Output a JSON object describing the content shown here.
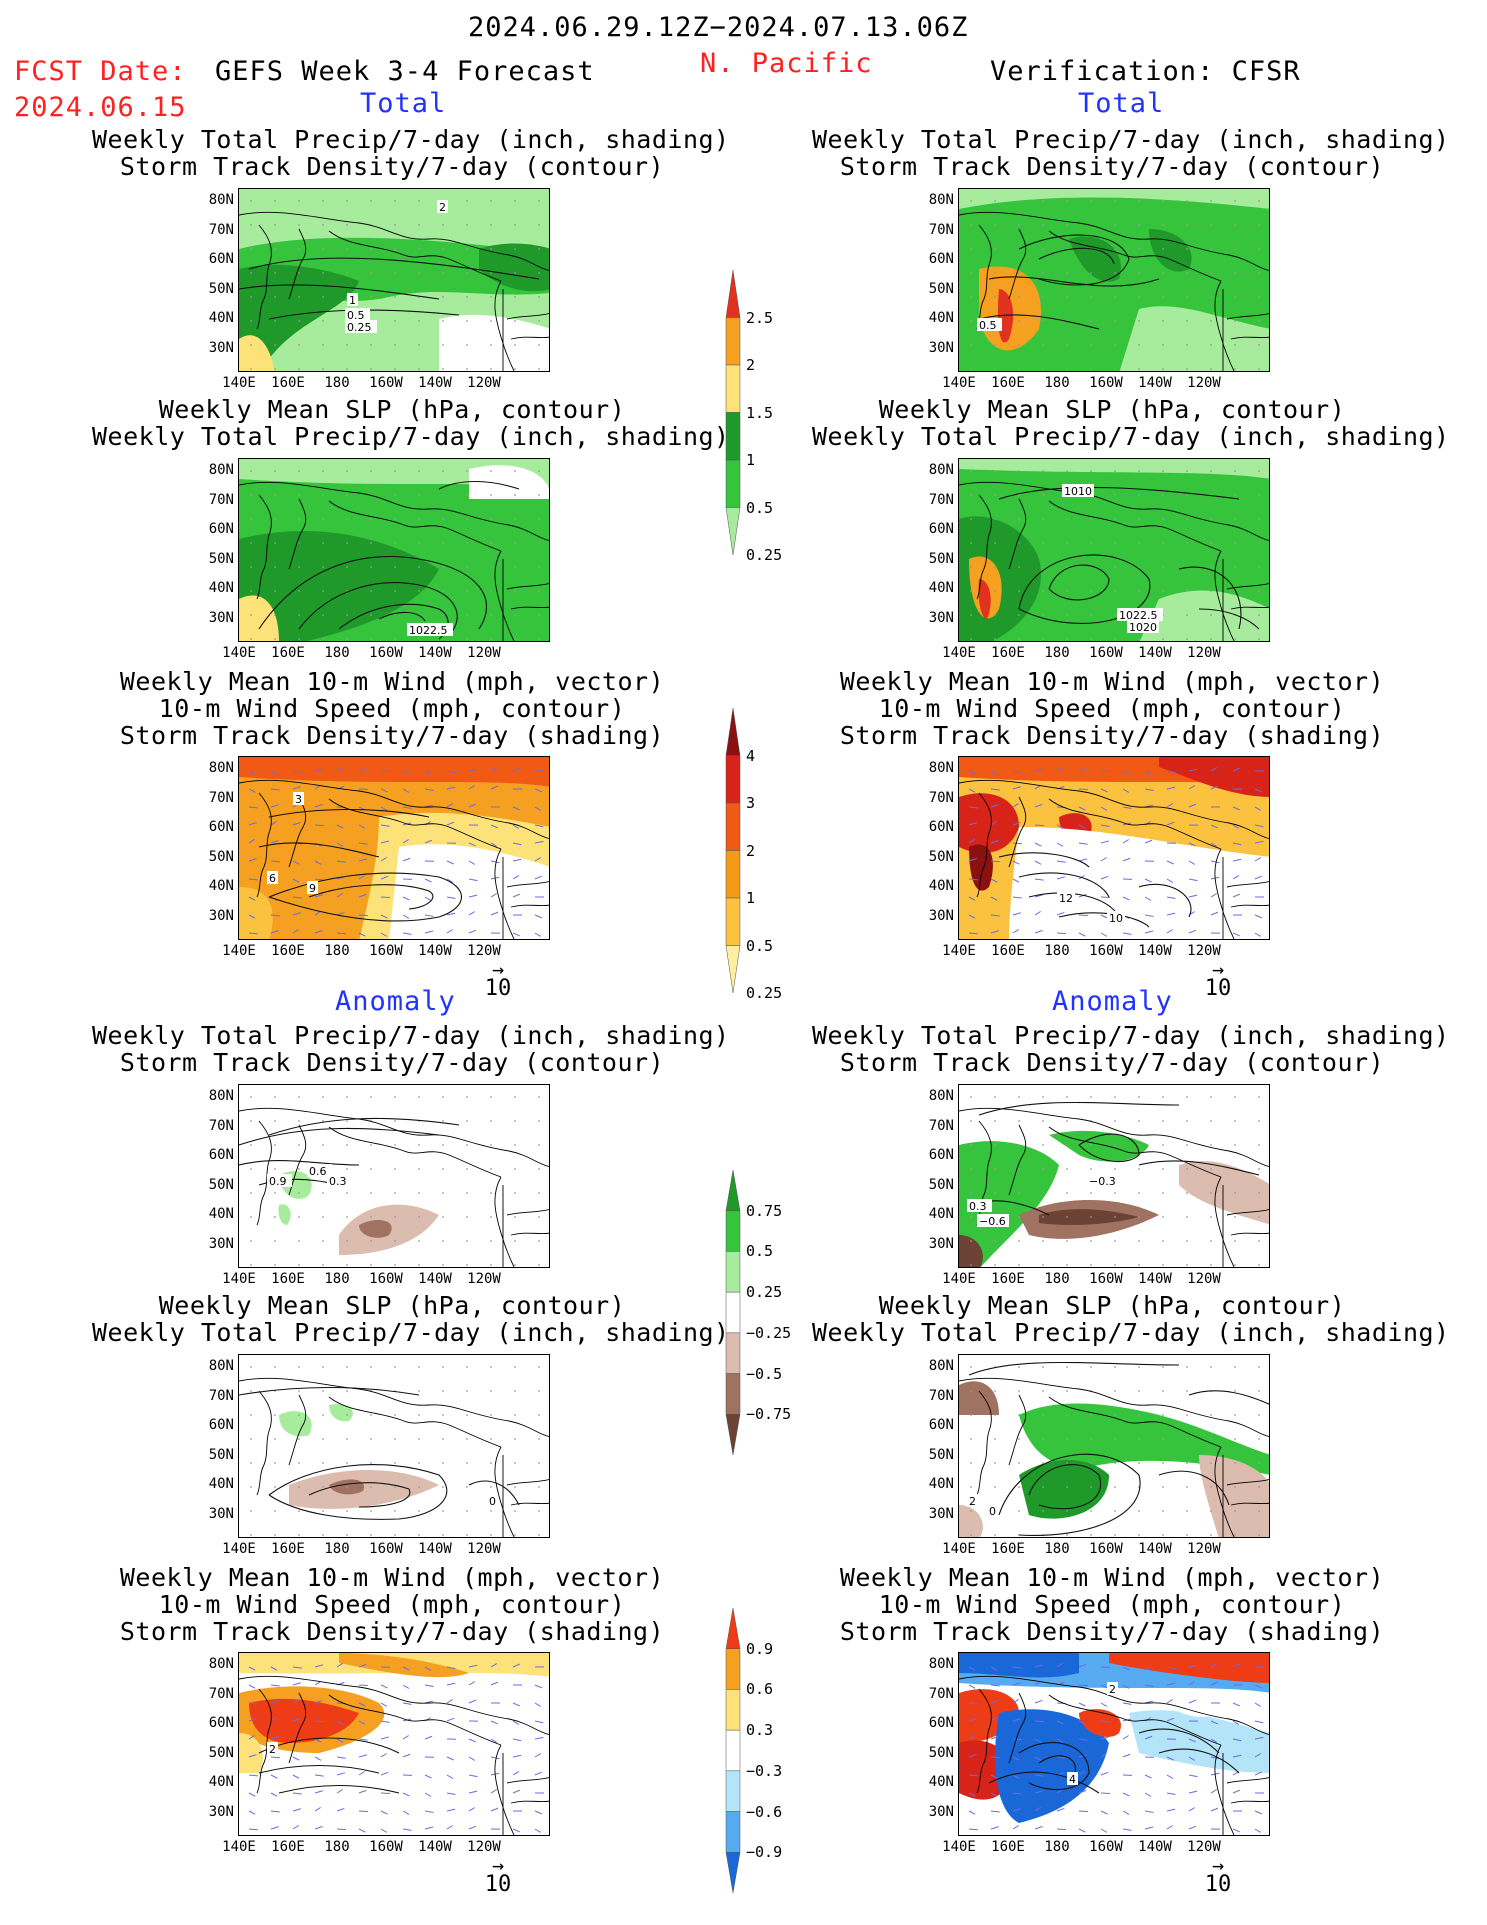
{
  "header": {
    "period": "2024.06.29.12Z−2024.07.13.06Z",
    "fcst_date_label": "FCST Date:",
    "fcst_date_value": "2024.06.15",
    "forecast_title": "GEFS Week 3-4 Forecast",
    "region": "N. Pacific",
    "verification": "Verification: CFSR",
    "total_label": "Total",
    "anomaly_label": "Anomaly"
  },
  "titles": {
    "precip_storm": [
      "Weekly Total Precip/7-day (inch, shading)",
      "Storm Track Density/7-day (contour)"
    ],
    "slp_precip": [
      "Weekly Mean SLP (hPa, contour)",
      "Weekly Total Precip/7-day (inch, shading)"
    ],
    "wind_storm": [
      "Weekly Mean 10-m Wind (mph, vector)",
      "10-m Wind Speed (mph, contour)",
      "Storm Track Density/7-day (shading)"
    ]
  },
  "axes": {
    "lat_labels": [
      "80N",
      "70N",
      "60N",
      "50N",
      "40N",
      "30N"
    ],
    "lon_labels": [
      "140E",
      "160E",
      "180",
      "160W",
      "140W",
      "120W"
    ],
    "vector_ref": "10"
  },
  "colorbars": {
    "precip_total": {
      "labels": [
        "2.5",
        "2",
        "1.5",
        "1",
        "0.5",
        "0.25"
      ],
      "colors": [
        "#e0321e",
        "#f5a020",
        "#fde27a",
        "#1f9a2a",
        "#35c43c",
        "#a6ec9c"
      ]
    },
    "storm_total": {
      "labels": [
        "4",
        "3",
        "2",
        "1",
        "0.5",
        "0.25"
      ],
      "colors": [
        "#8b1010",
        "#d82418",
        "#f05a14",
        "#f59a16",
        "#fbc240",
        "#fdeea0"
      ]
    },
    "precip_anom": {
      "labels": [
        "0.75",
        "0.5",
        "0.25",
        "−0.25",
        "−0.5",
        "−0.75"
      ],
      "colors": [
        "#1f9a2a",
        "#35c43c",
        "#a6ec9c",
        "#ffffff",
        "#dcbcae",
        "#a07262",
        "#6b4234"
      ]
    },
    "storm_anom": {
      "labels": [
        "0.9",
        "0.6",
        "0.3",
        "−0.3",
        "−0.6",
        "−0.9"
      ],
      "colors": [
        "#ee3c16",
        "#f5a020",
        "#fde27a",
        "#ffffff",
        "#b4e4f8",
        "#55aaf0",
        "#1a68d8"
      ]
    }
  },
  "contour_labels": {
    "fc_total_precip": [
      "2",
      "1",
      "0.5",
      "0.25"
    ],
    "ob_total_precip": [
      "0.5"
    ],
    "fc_total_slp": [
      "1022.5"
    ],
    "ob_total_slp": [
      "1010",
      "1022.5",
      "1020"
    ],
    "fc_total_wind": [
      "3",
      "6",
      "9"
    ],
    "ob_total_wind": [
      "12",
      "10"
    ],
    "fc_anom_precip": [
      "0.9",
      "0.6",
      "0.3"
    ],
    "ob_anom_precip": [
      "−0.3",
      "0.3",
      "−0.6"
    ],
    "fc_anom_slp": [
      "0"
    ],
    "ob_anom_slp": [
      "2",
      "0"
    ],
    "fc_anom_wind": [
      "2"
    ],
    "ob_anom_wind": [
      "2",
      "4"
    ]
  }
}
